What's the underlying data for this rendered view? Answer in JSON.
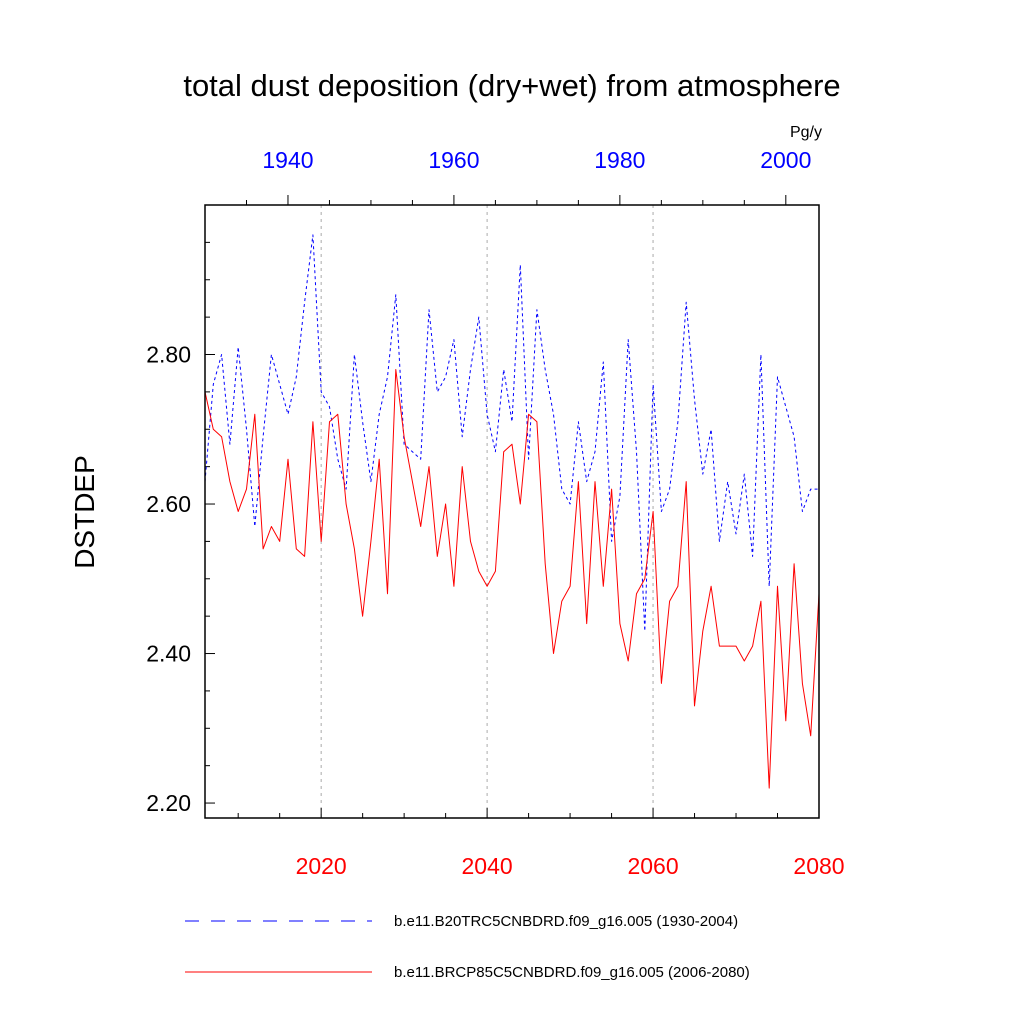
{
  "chart_data": {
    "type": "line",
    "title": "total dust deposition (dry+wet) from atmosphere",
    "units": "Pg/y",
    "ylabel": "DSTDEP",
    "ylim": [
      2.18,
      3.0
    ],
    "yticks": [
      2.2,
      2.4,
      2.6,
      2.8
    ],
    "ytick_labels": [
      "2.20",
      "2.40",
      "2.60",
      "2.80"
    ],
    "ygrid": false,
    "xgrid_dashed_at": [
      2020,
      2040,
      2060
    ],
    "x_bottom": {
      "range": [
        2006,
        2080
      ],
      "ticks": [
        2020,
        2040,
        2060,
        2080
      ],
      "tick_labels": [
        "2020",
        "2040",
        "2060",
        "2080"
      ],
      "color": "#ff0000"
    },
    "x_top": {
      "range": [
        1930,
        2004
      ],
      "ticks": [
        1940,
        1960,
        1980,
        2000
      ],
      "tick_labels": [
        "1940",
        "1960",
        "1980",
        "2000"
      ],
      "color": "#0000ff"
    },
    "legend_position": "bottom",
    "series": [
      {
        "name": "b.e11.B20TRC5CNBDRD.f09_g16.005 (1930-2004)",
        "color": "#0000ff",
        "style": "dashed",
        "axis": "top",
        "x": [
          1930,
          1931,
          1932,
          1933,
          1934,
          1935,
          1936,
          1937,
          1938,
          1939,
          1940,
          1941,
          1942,
          1943,
          1944,
          1945,
          1946,
          1947,
          1948,
          1949,
          1950,
          1951,
          1952,
          1953,
          1954,
          1955,
          1956,
          1957,
          1958,
          1959,
          1960,
          1961,
          1962,
          1963,
          1964,
          1965,
          1966,
          1967,
          1968,
          1969,
          1970,
          1971,
          1972,
          1973,
          1974,
          1975,
          1976,
          1977,
          1978,
          1979,
          1980,
          1981,
          1982,
          1983,
          1984,
          1985,
          1986,
          1987,
          1988,
          1989,
          1990,
          1991,
          1992,
          1993,
          1994,
          1995,
          1996,
          1997,
          1998,
          1999,
          2000,
          2001,
          2002,
          2003,
          2004
        ],
        "values": [
          2.63,
          2.76,
          2.8,
          2.68,
          2.81,
          2.7,
          2.57,
          2.69,
          2.8,
          2.76,
          2.72,
          2.77,
          2.87,
          2.96,
          2.75,
          2.73,
          2.66,
          2.62,
          2.8,
          2.71,
          2.63,
          2.72,
          2.77,
          2.88,
          2.68,
          2.67,
          2.66,
          2.86,
          2.75,
          2.77,
          2.82,
          2.69,
          2.78,
          2.85,
          2.72,
          2.67,
          2.78,
          2.71,
          2.92,
          2.66,
          2.86,
          2.78,
          2.72,
          2.62,
          2.6,
          2.71,
          2.63,
          2.67,
          2.79,
          2.55,
          2.61,
          2.82,
          2.67,
          2.43,
          2.76,
          2.59,
          2.62,
          2.71,
          2.87,
          2.74,
          2.64,
          2.7,
          2.55,
          2.63,
          2.56,
          2.64,
          2.53,
          2.8,
          2.49,
          2.77,
          2.73,
          2.69,
          2.59,
          2.62,
          2.62
        ]
      },
      {
        "name": "b.e11.BRCP85C5CNBDRD.f09_g16.005 (2006-2080)",
        "color": "#ff0000",
        "style": "solid",
        "axis": "bottom",
        "x": [
          2006,
          2007,
          2008,
          2009,
          2010,
          2011,
          2012,
          2013,
          2014,
          2015,
          2016,
          2017,
          2018,
          2019,
          2020,
          2021,
          2022,
          2023,
          2024,
          2025,
          2026,
          2027,
          2028,
          2029,
          2030,
          2031,
          2032,
          2033,
          2034,
          2035,
          2036,
          2037,
          2038,
          2039,
          2040,
          2041,
          2042,
          2043,
          2044,
          2045,
          2046,
          2047,
          2048,
          2049,
          2050,
          2051,
          2052,
          2053,
          2054,
          2055,
          2056,
          2057,
          2058,
          2059,
          2060,
          2061,
          2062,
          2063,
          2064,
          2065,
          2066,
          2067,
          2068,
          2069,
          2070,
          2071,
          2072,
          2073,
          2074,
          2075,
          2076,
          2077,
          2078,
          2079,
          2080
        ],
        "values": [
          2.75,
          2.7,
          2.69,
          2.63,
          2.59,
          2.62,
          2.72,
          2.54,
          2.57,
          2.55,
          2.66,
          2.54,
          2.53,
          2.71,
          2.55,
          2.71,
          2.72,
          2.6,
          2.54,
          2.45,
          2.55,
          2.66,
          2.48,
          2.78,
          2.69,
          2.63,
          2.57,
          2.65,
          2.53,
          2.6,
          2.49,
          2.65,
          2.55,
          2.51,
          2.49,
          2.51,
          2.67,
          2.68,
          2.6,
          2.72,
          2.71,
          2.52,
          2.4,
          2.47,
          2.49,
          2.63,
          2.44,
          2.63,
          2.49,
          2.62,
          2.44,
          2.39,
          2.48,
          2.5,
          2.59,
          2.36,
          2.47,
          2.49,
          2.63,
          2.33,
          2.43,
          2.49,
          2.41,
          2.41,
          2.41,
          2.39,
          2.41,
          2.47,
          2.22,
          2.49,
          2.31,
          2.52,
          2.36,
          2.29,
          2.48
        ]
      }
    ]
  }
}
